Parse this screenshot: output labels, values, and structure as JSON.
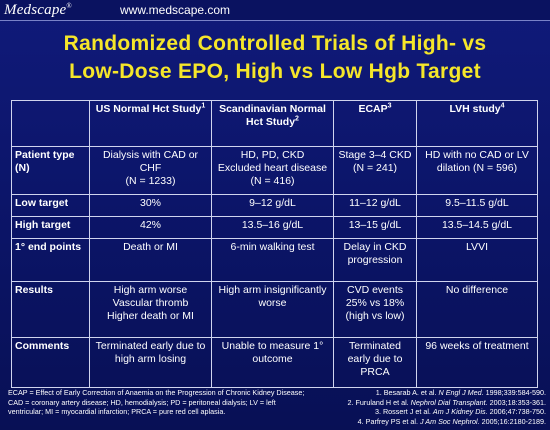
{
  "header": {
    "brand": "Medscape",
    "brand_mark": "®",
    "url": "www.medscape.com"
  },
  "title": {
    "line1": "Randomized Controlled Trials of High- vs",
    "line2": "Low-Dose EPO, High vs Low Hgb Target"
  },
  "table": {
    "columns": [
      {
        "label": "US Normal Hct Study",
        "sup": "1"
      },
      {
        "label": "Scandinavian Normal Hct Study",
        "sup": "2"
      },
      {
        "label": "ECAP",
        "sup": "3"
      },
      {
        "label": "LVH study",
        "sup": "4"
      }
    ],
    "rows": {
      "patient_type": {
        "label": "Patient type (N)",
        "cells": [
          [
            "Dialysis with CAD or CHF",
            "(N = 1233)"
          ],
          [
            "HD, PD, CKD",
            "Excluded heart disease (N = 416)"
          ],
          [
            "Stage 3–4 CKD",
            "(N = 241)"
          ],
          [
            "HD with no CAD or LV dilation (N = 596)"
          ]
        ]
      },
      "low_target": {
        "label": "Low target",
        "cells": [
          "30%",
          "9–12 g/dL",
          "11–12 g/dL",
          "9.5–11.5 g/dL"
        ]
      },
      "high_target": {
        "label": "High target",
        "cells": [
          "42%",
          "13.5–16 g/dL",
          "13–15 g/dL",
          "13.5–14.5 g/dL"
        ]
      },
      "end_points": {
        "label": "1° end points",
        "cells": [
          "Death or MI",
          "6-min walking test",
          "Delay in CKD progression",
          "LVVI"
        ]
      },
      "results": {
        "label": "Results",
        "cells": [
          [
            "High arm worse",
            "Vascular thromb",
            "Higher death or MI"
          ],
          [
            "High arm insignificantly worse"
          ],
          [
            "CVD events 25% vs 18%",
            "(high vs low)"
          ],
          [
            "No difference"
          ]
        ]
      },
      "comments": {
        "label": "Comments",
        "cells": [
          "Terminated early due to high arm losing",
          "Unable to measure 1° outcome",
          "Terminated early due to PRCA",
          "96 weeks of treatment"
        ]
      }
    }
  },
  "footnote": "ECAP = Effect of Early Correction of Anaemia on the Progression of Chronic Kidney Disease; CAD = coronary artery disease; HD, hemodialysis; PD = peritoneal dialysis; LV = left ventricular; MI = myocardial infarction; PRCA = pure red cell aplasia.",
  "references": [
    {
      "pre": "1. Besarab A. et al. ",
      "journal": "N Engl J Med.",
      "post": " 1998;339:584-590."
    },
    {
      "pre": "2. Furuland H et al. ",
      "journal": "Nephrol Dial Transplant.",
      "post": " 2003;18:353-361."
    },
    {
      "pre": "3. Rossert J et al. ",
      "journal": "Am J Kidney Dis.",
      "post": " 2006;47:738-750."
    },
    {
      "pre": "4. Parfrey PS et al. ",
      "journal": "J Am Soc Nephrol.",
      "post": " 2005;16:2180-2189."
    }
  ],
  "colors": {
    "background": "#0b1466",
    "title": "#f5e62a",
    "text": "#ffffff",
    "grid": "#d0d4ee"
  }
}
